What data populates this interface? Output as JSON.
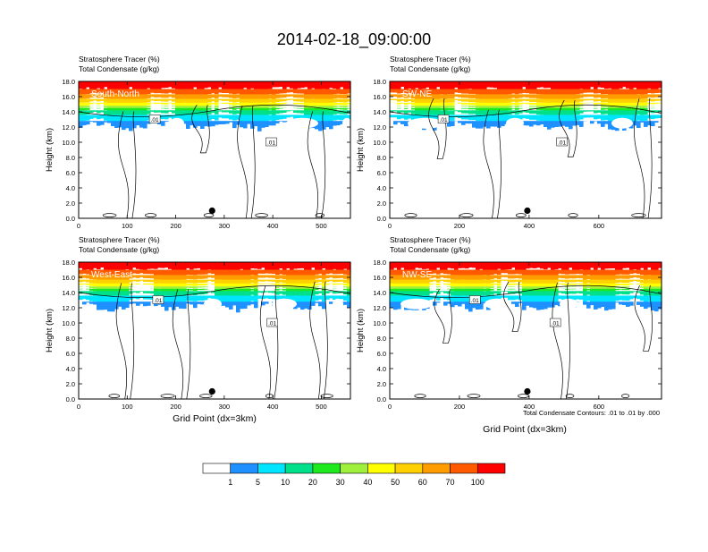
{
  "title": "2014-02-18_09:00:00",
  "header_line1": "Stratosphere Tracer   (%)",
  "header_line2": "Total Condensate   (g/kg)",
  "ylabel": "Height (km)",
  "xlabel": "Grid Point (dx=3km)",
  "contour_note": "Total Condensate Contours: .01 to .01 by .000",
  "contour_label": ".01",
  "yticks": [
    "0.0",
    "2.0",
    "4.0",
    "6.0",
    "8.0",
    "10.0",
    "12.0",
    "14.0",
    "16.0",
    "18.0"
  ],
  "colorbar": {
    "labels": [
      "1",
      "5",
      "10",
      "20",
      "30",
      "40",
      "50",
      "60",
      "70",
      "100"
    ],
    "colors": [
      "#ffffff",
      "#1e90ff",
      "#00e5ff",
      "#00e08a",
      "#1ee81e",
      "#9ef03c",
      "#ffff00",
      "#ffd000",
      "#ff9c00",
      "#ff5a00",
      "#ff0000"
    ]
  },
  "chart_data": [
    {
      "type": "heatmap",
      "panel": "South-North",
      "x_ticks": [
        "0",
        "100",
        "200",
        "300",
        "400",
        "500"
      ],
      "xlim": [
        0,
        560
      ],
      "ylim": [
        0,
        18
      ],
      "xlabel": "",
      "ylabel": "Height (km)",
      "title": "Stratosphere Tracer (%) / Total Condensate (g/kg)",
      "marker_x": 275,
      "marker_y": 1.0
    },
    {
      "type": "heatmap",
      "panel": "SW-NE",
      "x_ticks": [
        "0",
        "200",
        "400",
        "600"
      ],
      "xlim": [
        0,
        780
      ],
      "ylim": [
        0,
        18
      ],
      "xlabel": "",
      "ylabel": "Height (km)",
      "title": "Stratosphere Tracer (%) / Total Condensate (g/kg)",
      "marker_x": 395,
      "marker_y": 1.0
    },
    {
      "type": "heatmap",
      "panel": "West-East",
      "x_ticks": [
        "0",
        "100",
        "200",
        "300",
        "400",
        "500"
      ],
      "xlim": [
        0,
        560
      ],
      "ylim": [
        0,
        18
      ],
      "xlabel": "Grid Point (dx=3km)",
      "ylabel": "Height (km)",
      "title": "Stratosphere Tracer (%) / Total Condensate (g/kg)",
      "marker_x": 275,
      "marker_y": 1.0
    },
    {
      "type": "heatmap",
      "panel": "NW-SE",
      "x_ticks": [
        "0",
        "200",
        "400",
        "600"
      ],
      "xlim": [
        0,
        780
      ],
      "ylim": [
        0,
        18
      ],
      "xlabel": "Grid Point (dx=3km)",
      "ylabel": "Height (km)",
      "title": "Stratosphere Tracer (%) / Total Condensate (g/kg)",
      "marker_x": 395,
      "marker_y": 1.0
    }
  ]
}
